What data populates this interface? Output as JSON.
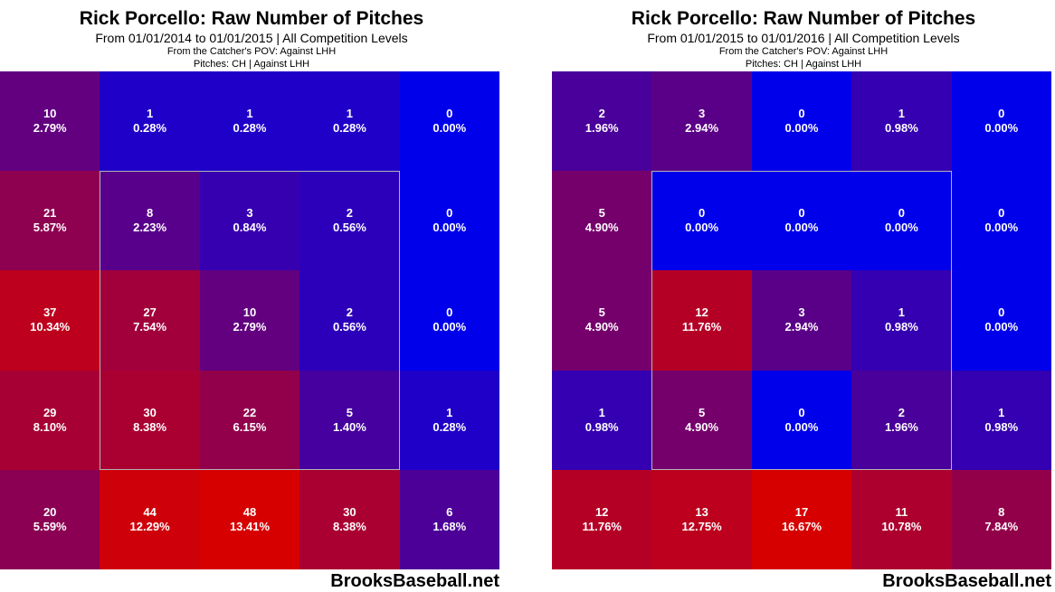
{
  "colors": {
    "low": "#0000ff",
    "high": "#ff0000",
    "zone_border": "#b4b4b4",
    "text": "#ffffff"
  },
  "charts": [
    {
      "title": "Rick Porcello: Raw Number of Pitches",
      "subtitle": "From 01/01/2014 to 01/01/2015 | All Competition Levels",
      "line3": "From the Catcher's POV:  Against LHH",
      "line4": "Pitches:  CH  |  Against LHH",
      "credit": "BrooksBaseball.net"
    },
    {
      "title": "Rick Porcello: Raw Number of Pitches",
      "subtitle": "From 01/01/2015 to 01/01/2016 | All Competition Levels",
      "line3": "From the Catcher's POV:  Against LHH",
      "line4": "Pitches:  CH  |  Against LHH",
      "credit": "BrooksBaseball.net"
    }
  ],
  "chart_data": [
    {
      "type": "heatmap",
      "title": "Rick Porcello: Raw Number of Pitches",
      "rows": 5,
      "cols": 5,
      "counts": [
        [
          10,
          1,
          1,
          1,
          0
        ],
        [
          21,
          8,
          3,
          2,
          0
        ],
        [
          37,
          27,
          10,
          2,
          0
        ],
        [
          29,
          30,
          22,
          5,
          1
        ],
        [
          20,
          44,
          48,
          30,
          6
        ]
      ],
      "percents": [
        [
          "2.79%",
          "0.28%",
          "0.28%",
          "0.28%",
          "0.00%"
        ],
        [
          "5.87%",
          "2.23%",
          "0.84%",
          "0.56%",
          "0.00%"
        ],
        [
          "10.34%",
          "7.54%",
          "2.79%",
          "0.56%",
          "0.00%"
        ],
        [
          "8.10%",
          "8.38%",
          "6.15%",
          "1.40%",
          "0.28%"
        ],
        [
          "5.59%",
          "12.29%",
          "13.41%",
          "8.38%",
          "1.68%"
        ]
      ],
      "color_max": 48
    },
    {
      "type": "heatmap",
      "title": "Rick Porcello: Raw Number of Pitches",
      "rows": 5,
      "cols": 5,
      "counts": [
        [
          2,
          3,
          0,
          1,
          0
        ],
        [
          5,
          0,
          0,
          0,
          0
        ],
        [
          5,
          12,
          3,
          1,
          0
        ],
        [
          1,
          5,
          0,
          2,
          1
        ],
        [
          12,
          13,
          17,
          11,
          8
        ]
      ],
      "percents": [
        [
          "1.96%",
          "2.94%",
          "0.00%",
          "0.98%",
          "0.00%"
        ],
        [
          "4.90%",
          "0.00%",
          "0.00%",
          "0.00%",
          "0.00%"
        ],
        [
          "4.90%",
          "11.76%",
          "2.94%",
          "0.98%",
          "0.00%"
        ],
        [
          "0.98%",
          "4.90%",
          "0.00%",
          "1.96%",
          "0.98%"
        ],
        [
          "11.76%",
          "12.75%",
          "16.67%",
          "10.78%",
          "7.84%"
        ]
      ],
      "color_max": 17
    }
  ]
}
